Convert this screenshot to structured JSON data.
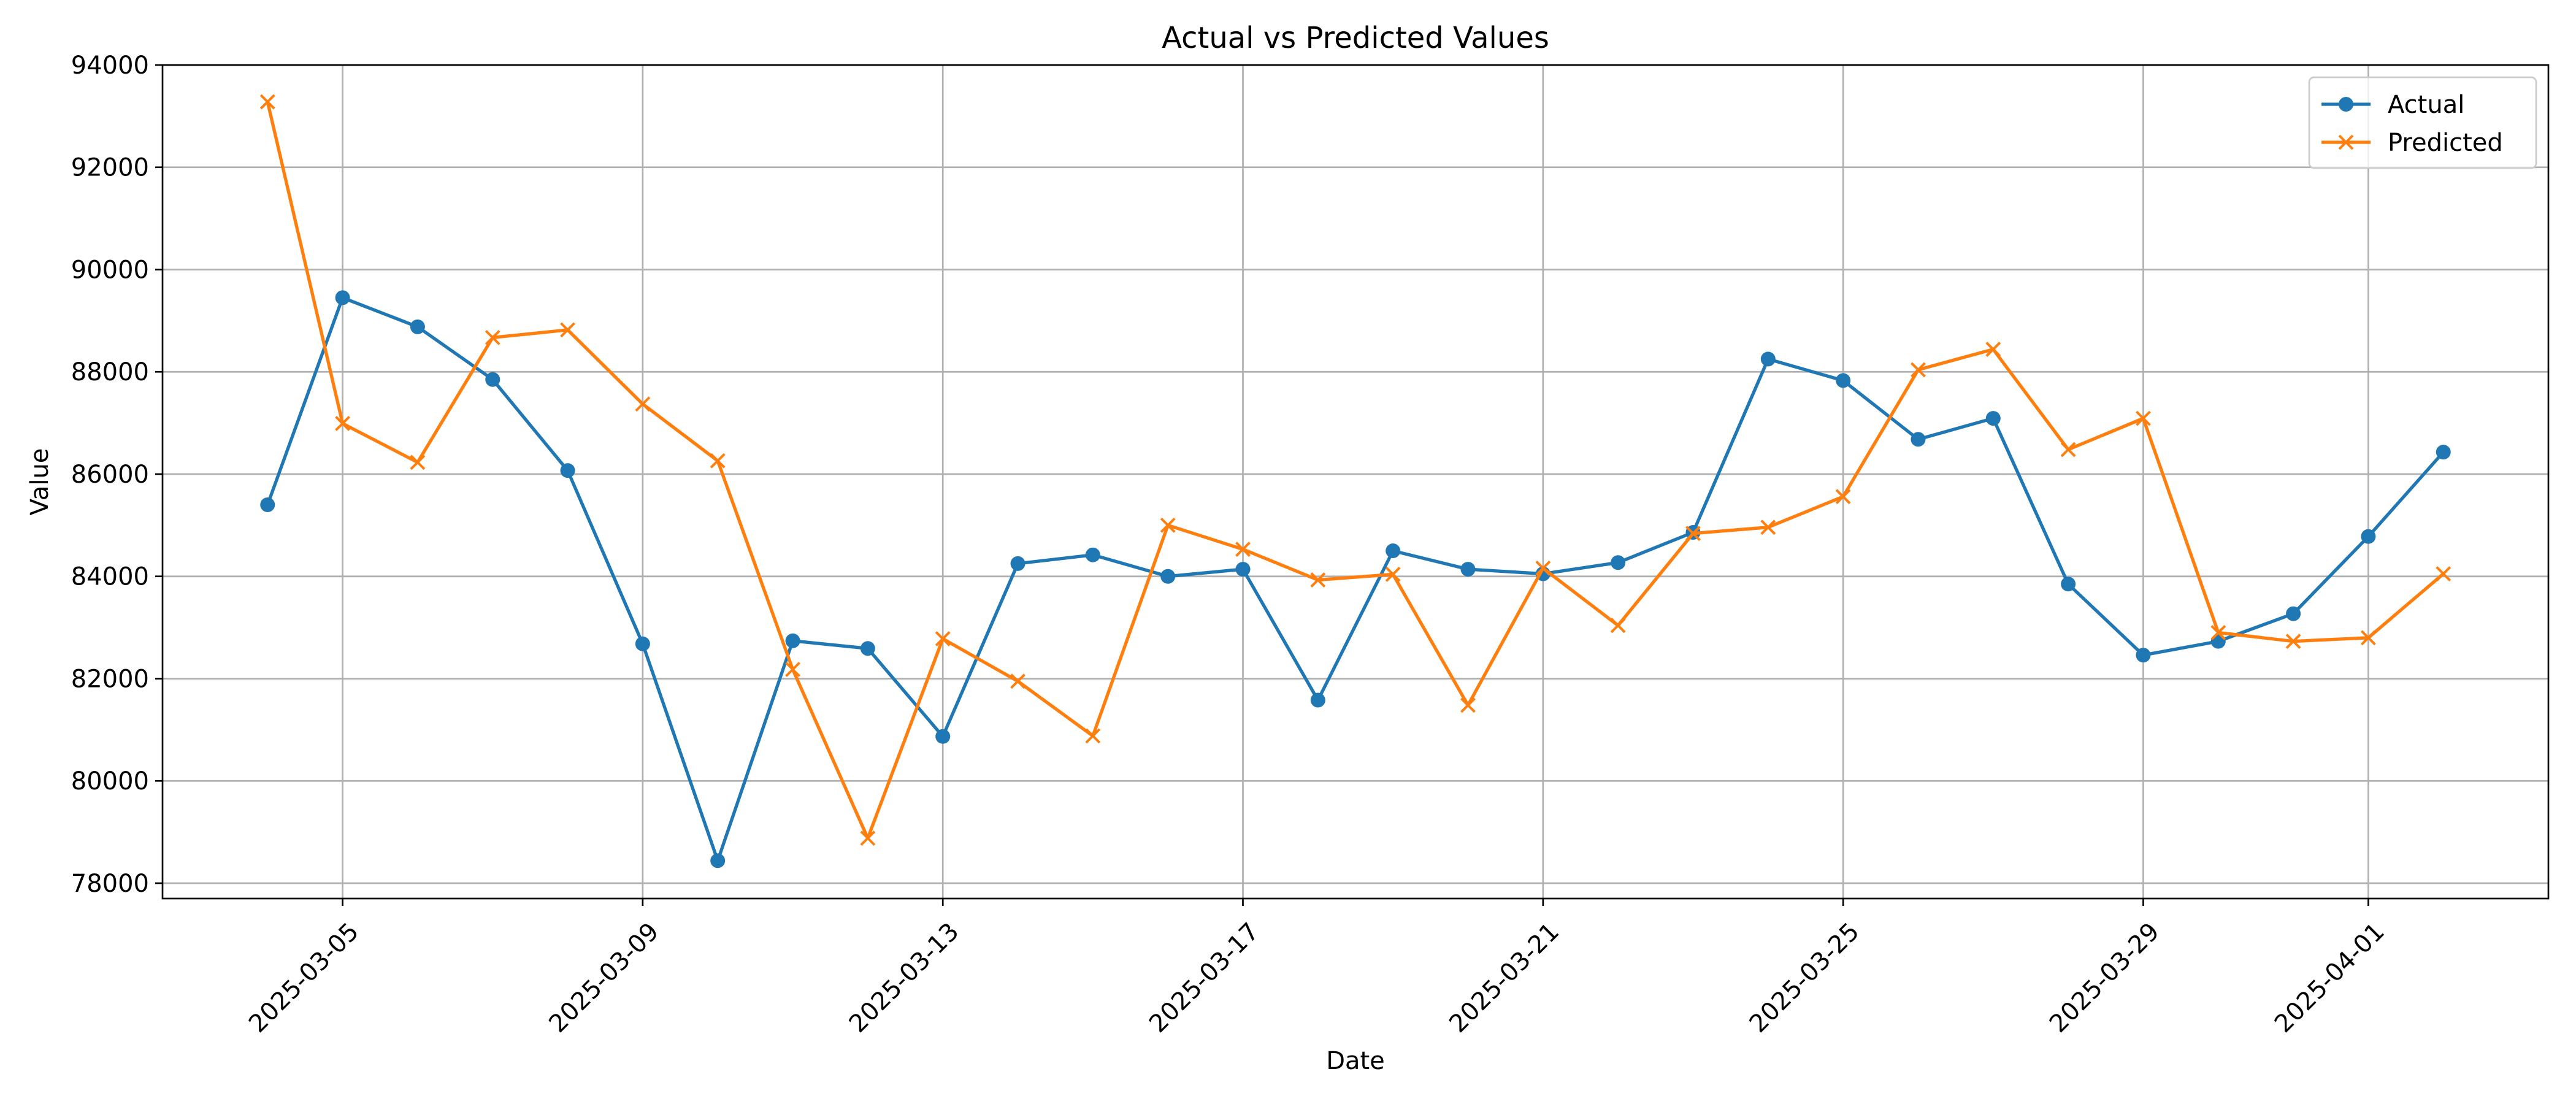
{
  "chart_data": {
    "type": "line",
    "title": "Actual vs Predicted Values",
    "xlabel": "Date",
    "ylabel": "Value",
    "x_axis_type": "date",
    "x": [
      "2025-03-04",
      "2025-03-05",
      "2025-03-06",
      "2025-03-07",
      "2025-03-08",
      "2025-03-09",
      "2025-03-10",
      "2025-03-11",
      "2025-03-12",
      "2025-03-13",
      "2025-03-14",
      "2025-03-15",
      "2025-03-16",
      "2025-03-17",
      "2025-03-18",
      "2025-03-19",
      "2025-03-20",
      "2025-03-21",
      "2025-03-22",
      "2025-03-23",
      "2025-03-24",
      "2025-03-25",
      "2025-03-26",
      "2025-03-27",
      "2025-03-28",
      "2025-03-29",
      "2025-03-30",
      "2025-03-31",
      "2025-04-01",
      "2025-04-02"
    ],
    "xticks": [
      "2025-03-05",
      "2025-03-09",
      "2025-03-13",
      "2025-03-17",
      "2025-03-21",
      "2025-03-25",
      "2025-03-29",
      "2025-04-01"
    ],
    "xlim": [
      "2025-03-02.6",
      "2025-04-03.4"
    ],
    "yticks": [
      78000,
      80000,
      82000,
      84000,
      86000,
      88000,
      90000,
      92000,
      94000
    ],
    "ylim": [
      77700,
      94000
    ],
    "grid": true,
    "legend_position": "upper right",
    "series": [
      {
        "name": "Actual",
        "color": "#1f77b4",
        "marker": "circle",
        "values": [
          85400,
          89450,
          88880,
          87850,
          86070,
          82680,
          78440,
          82740,
          82590,
          80870,
          84250,
          84420,
          84000,
          84140,
          81580,
          84500,
          84140,
          84050,
          84270,
          84860,
          88250,
          87830,
          86680,
          87090,
          83850,
          82460,
          82730,
          83270,
          84780,
          86430
        ]
      },
      {
        "name": "Predicted",
        "color": "#ff7f0e",
        "marker": "x",
        "values": [
          93280,
          86990,
          86230,
          88670,
          88820,
          87370,
          86260,
          82180,
          78880,
          82780,
          81950,
          80880,
          85000,
          84530,
          83930,
          84040,
          81480,
          84160,
          83040,
          84840,
          84960,
          85560,
          88040,
          88440,
          86480,
          87090,
          82900,
          82730,
          82800,
          84050
        ]
      }
    ]
  }
}
